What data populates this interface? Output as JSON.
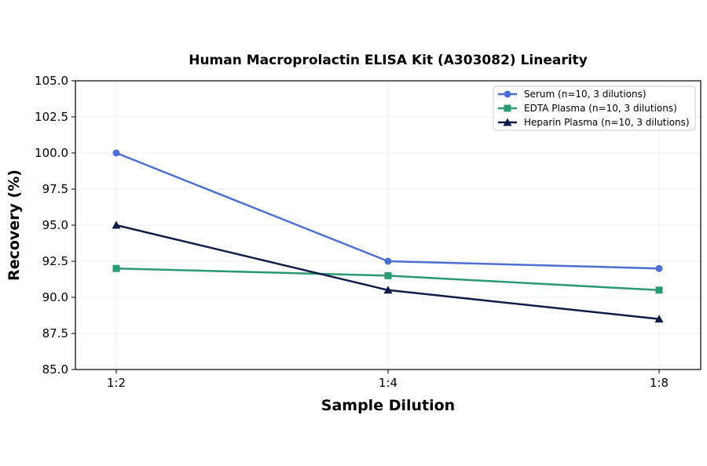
{
  "chart_data": {
    "type": "line",
    "title": "Human Macroprolactin ELISA Kit (A303082) Linearity",
    "xlabel": "Sample Dilution",
    "ylabel": "Recovery (%)",
    "categories": [
      "1:2",
      "1:4",
      "1:8"
    ],
    "ylim": [
      85.0,
      105.0
    ],
    "yticks": [
      "85.0",
      "87.5",
      "90.0",
      "92.5",
      "95.0",
      "97.5",
      "100.0",
      "102.5",
      "105.0"
    ],
    "grid": true,
    "legend_position": "top-right",
    "series": [
      {
        "name": "Serum (n=10, 3 dilutions)",
        "values": [
          100.0,
          92.5,
          92.0
        ],
        "color": "#4c6fd1",
        "marker": "circle"
      },
      {
        "name": "EDTA Plasma (n=10, 3 dilutions)",
        "values": [
          92.0,
          91.5,
          90.5
        ],
        "color": "#2a9a72",
        "marker": "square"
      },
      {
        "name": "Heparin Plasma (n=10, 3 dilutions)",
        "values": [
          95.0,
          90.5,
          88.5
        ],
        "color": "#0f1c45",
        "marker": "triangle"
      }
    ]
  }
}
